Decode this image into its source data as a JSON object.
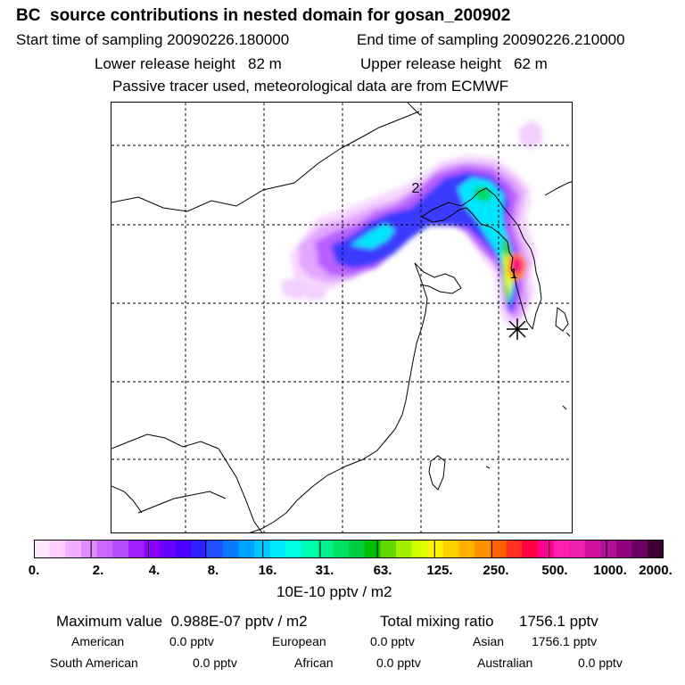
{
  "header": {
    "title": "BC  source contributions in nested domain for gosan_200902",
    "start": "Start time of sampling 20090226.180000",
    "end": "End time of sampling 20090226.210000",
    "lower": "Lower release height   82 m",
    "upper": "Upper release height   62 m",
    "tracer": "Passive tracer used, meteorological data are from ECMWF"
  },
  "map": {
    "markers": [
      "2",
      "1"
    ],
    "receptor": "gosan"
  },
  "colorbar": {
    "colors": [
      "#ffe6ff",
      "#ffccff",
      "#f0b0ff",
      "#e08cff",
      "#cc66ff",
      "#b84dff",
      "#a020ff",
      "#8c00ff",
      "#6a00ff",
      "#4b00ff",
      "#2f20ff",
      "#1e50ff",
      "#0a78ff",
      "#00a0ff",
      "#00c8ff",
      "#00eaff",
      "#00ffe0",
      "#00ffb0",
      "#00f090",
      "#00e060",
      "#00d040",
      "#00c000",
      "#60d800",
      "#a0f000",
      "#d8ff00",
      "#fff000",
      "#ffd000",
      "#ffb000",
      "#ff9000",
      "#ff6000",
      "#ff3020",
      "#ff0040",
      "#ff0090",
      "#ff1fb0",
      "#f020b0",
      "#d010a0",
      "#b0109a",
      "#900080",
      "#6a0060",
      "#3a0030"
    ],
    "labels": [
      "0.",
      "2.",
      "4.",
      "8.",
      "16.",
      "31.",
      "63.",
      "125.",
      "250.",
      "500.",
      "1000.",
      "2000."
    ],
    "unit": "10E-10 pptv / m2"
  },
  "summary": {
    "maximum": "Maximum value  0.988E-07 pptv / m2",
    "total": "Total mixing ratio      1756.1 pptv"
  },
  "regions": [
    {
      "name": "American",
      "value": "0.0 pptv"
    },
    {
      "name": "European",
      "value": "0.0 pptv"
    },
    {
      "name": "Asian",
      "value": "1756.1 pptv"
    },
    {
      "name": "South American",
      "value": "0.0 pptv"
    },
    {
      "name": "African",
      "value": "0.0 pptv"
    },
    {
      "name": "Australian",
      "value": "0.0 pptv"
    }
  ]
}
